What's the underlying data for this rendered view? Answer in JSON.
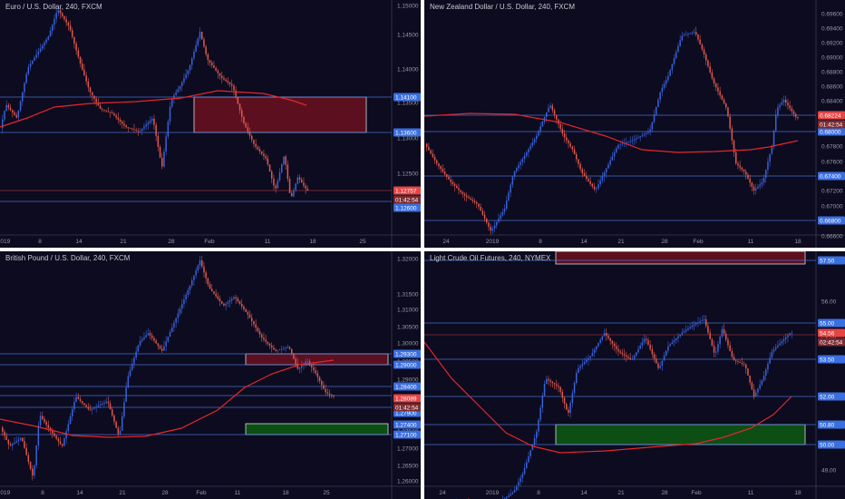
{
  "colors": {
    "background": "#0c0b1f",
    "up_candle": "#3a63d8",
    "down_candle": "#e0584e",
    "level_line": "#4c79e0",
    "moving_average": "#e5262c",
    "supply_zone": "#6b1220",
    "demand_zone": "#0e5a14",
    "price_tag": "#e64545",
    "level_tag": "#3a6fe0"
  },
  "panels": [
    {
      "title": "Euro / U.S. Dollar, 240, FXCM",
      "y_ticks": [
        "1.15000",
        "1.14500",
        "1.14000",
        "1.13500",
        "1.13000",
        "1.12500"
      ],
      "x_ticks": [
        "2019",
        "8",
        "14",
        "21",
        "28",
        "Feb",
        "11",
        "18",
        "25"
      ],
      "level_tags": [
        "1.14100",
        "1.13600",
        "1.12600"
      ],
      "price_tag": "1.12757",
      "countdown": "01:42:54"
    },
    {
      "title": "New Zealand Dollar / U.S. Dollar, 240, FXCM",
      "y_ticks": [
        "0.69600",
        "0.69400",
        "0.69200",
        "0.69000",
        "0.68800",
        "0.68600",
        "0.68400",
        "0.68200",
        "0.68000",
        "0.67800",
        "0.67600",
        "0.67400",
        "0.67200",
        "0.67000",
        "0.66800",
        "0.66600"
      ],
      "x_ticks": [
        "24",
        "2019",
        "8",
        "14",
        "21",
        "28",
        "Feb",
        "11",
        "18"
      ],
      "level_tags": [
        "0.68000",
        "0.67400",
        "0.66800"
      ],
      "price_tag": "0.68224",
      "countdown": "01:42:54"
    },
    {
      "title": "British Pound / U.S. Dollar, 240, FXCM",
      "y_ticks": [
        "1.32000",
        "1.31500",
        "1.31000",
        "1.30500",
        "1.30000",
        "1.29500",
        "1.29000",
        "1.28500",
        "1.28000",
        "1.27500",
        "1.27000",
        "1.26500",
        "1.26000"
      ],
      "x_ticks": [
        "2019",
        "8",
        "14",
        "21",
        "28",
        "Feb",
        "11",
        "18",
        "25"
      ],
      "level_tags": [
        "1.29300",
        "1.29000",
        "1.28400",
        "1.27900",
        "1.27400",
        "1.27100"
      ],
      "price_tag": "1.28089",
      "countdown": "01:42:54"
    },
    {
      "title": "Light Crude Oil Futures, 240, NYMEX",
      "y_ticks": [
        "57.50",
        "56.00",
        "55.00",
        "54.00",
        "53.50",
        "52.00",
        "51.00",
        "50.00",
        "49.00"
      ],
      "x_ticks": [
        "24",
        "2019",
        "8",
        "14",
        "21",
        "28",
        "Feb",
        "11",
        "18"
      ],
      "level_tags": [
        "57.50",
        "55.00",
        "53.50",
        "52.00",
        "50.80",
        "50.00"
      ],
      "price_tag": "54.56",
      "countdown": "02:42:54"
    }
  ]
}
